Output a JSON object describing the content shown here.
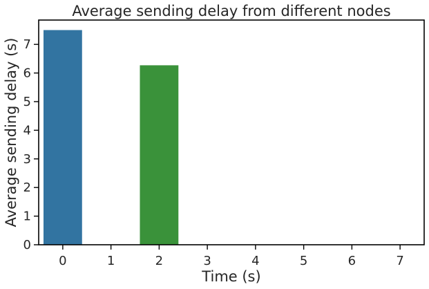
{
  "chart_data": {
    "type": "bar",
    "title": "Average sending delay from different nodes",
    "xlabel": "Time (s)",
    "ylabel": "Average sending delay (s)",
    "categories": [
      "0",
      "1",
      "2",
      "3",
      "4",
      "5",
      "6",
      "7"
    ],
    "values": [
      7.5,
      0,
      6.27,
      0,
      0,
      0,
      0,
      0
    ],
    "colors": [
      "#3274a1",
      "#e1812c",
      "#3a923a",
      "#c03d3e",
      "#9372b2",
      "#845b53",
      "#d684bd",
      "#7f7f7f"
    ],
    "ylim": [
      0,
      7.85
    ],
    "yticks": [
      "0",
      "1",
      "2",
      "3",
      "4",
      "5",
      "6",
      "7"
    ],
    "grid": false,
    "legend": "none"
  }
}
